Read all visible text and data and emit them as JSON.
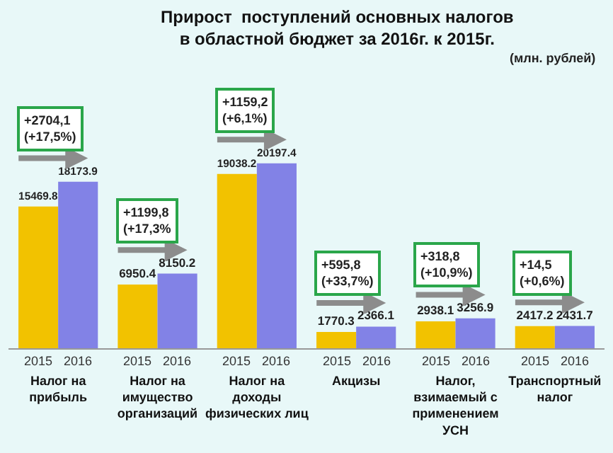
{
  "chart_data": {
    "type": "bar",
    "title": "Прирост  поступлений основных налогов\nв областной бюджет за 2016г. к 2015г.",
    "categories": [
      "Налог на\nприбыль",
      "Налог на\nимущество\nорганизаций",
      "Налог на\nдоходы\nфизических лиц",
      "Акцизы",
      "Налог,\nвзимаемый с\nприменением\nУСН",
      "Транспортный\nналог"
    ],
    "series": [
      {
        "name": "2015",
        "color": "#f2c200",
        "values": [
          15469.8,
          6950.4,
          19038.2,
          1770.3,
          2938.1,
          2417.2
        ]
      },
      {
        "name": "2016",
        "color": "#8282e6",
        "values": [
          18173.9,
          8150.2,
          20197.4,
          2366.1,
          3256.9,
          2431.7
        ]
      }
    ],
    "data_labels": true,
    "legend": false,
    "grid": false,
    "annotations": [
      "(млн. рублей)",
      "+2704,1\n(+17,5%)",
      "+1199,8\n(+17,3%",
      "+1159,2\n(+6,1%)",
      "+595,8\n(+33,7%)",
      "+318,8\n(+10,9%)",
      "+14,5\n(+0,6%)"
    ]
  }
}
